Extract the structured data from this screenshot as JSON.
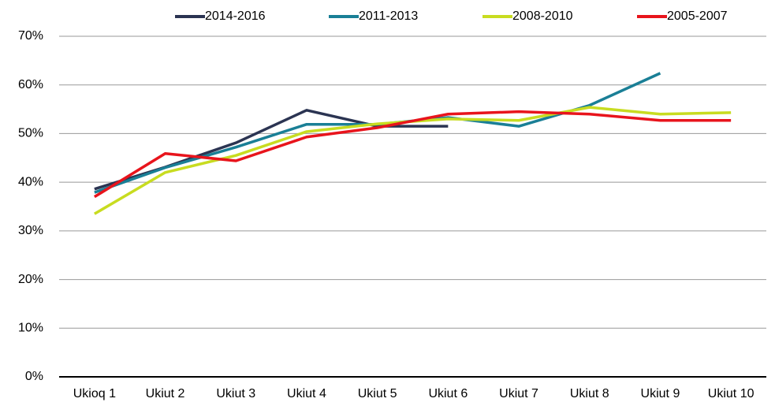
{
  "chart_data": {
    "type": "line",
    "categories": [
      "Ukioq 1",
      "Ukiut 2",
      "Ukiut 3",
      "Ukiut 4",
      "Ukiut 5",
      "Ukiut 6",
      "Ukiut 7",
      "Ukiut 8",
      "Ukiut 9",
      "Ukiut 10"
    ],
    "series": [
      {
        "name": "2014-2016",
        "color": "#2b3452",
        "values": [
          38.6,
          43.1,
          48.1,
          54.8,
          51.5,
          51.5,
          null,
          null,
          null,
          null
        ]
      },
      {
        "name": "2011-2013",
        "color": "#1a7f96",
        "values": [
          37.9,
          43.0,
          47.2,
          51.9,
          51.9,
          53.3,
          51.5,
          55.8,
          62.4,
          null
        ]
      },
      {
        "name": "2008-2010",
        "color": "#c8dc20",
        "values": [
          33.5,
          42.0,
          45.5,
          50.4,
          52.0,
          53.0,
          52.7,
          55.4,
          54.0,
          54.3
        ]
      },
      {
        "name": "2005-2007",
        "color": "#e8141c",
        "values": [
          37.0,
          45.9,
          44.4,
          49.3,
          51.2,
          54.0,
          54.5,
          54.0,
          52.7,
          52.7
        ]
      }
    ],
    "ylim": [
      0,
      70
    ],
    "yticks": [
      {
        "value": 0,
        "label": "0%"
      },
      {
        "value": 10,
        "label": "10%"
      },
      {
        "value": 20,
        "label": "20%"
      },
      {
        "value": 30,
        "label": "30%"
      },
      {
        "value": 40,
        "label": "40%"
      },
      {
        "value": 50,
        "label": "50%"
      },
      {
        "value": 60,
        "label": "60%"
      },
      {
        "value": 70,
        "label": "70%"
      }
    ],
    "grid": true,
    "legend": "top"
  }
}
